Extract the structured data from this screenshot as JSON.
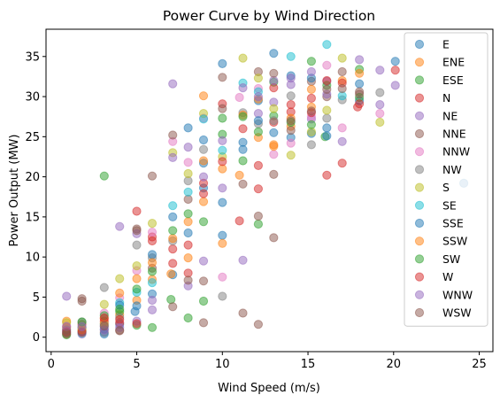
{
  "chart_data": {
    "type": "scatter",
    "title": "Power Curve by Wind Direction",
    "xlabel": "Wind Speed (m/s)",
    "ylabel": "Power Output (MW)",
    "xlim": [
      -0.3,
      25.8
    ],
    "ylim": [
      -1.8,
      38.4
    ],
    "xticks": [
      0,
      5,
      10,
      15,
      20,
      25
    ],
    "yticks": [
      0,
      5,
      10,
      15,
      20,
      25,
      30,
      35
    ],
    "grid": false,
    "legend_position": "top-right",
    "marker_alpha": 0.5,
    "series": [
      {
        "name": "E",
        "color": "#1f77b4",
        "points": [
          [
            0.9,
            0.6
          ],
          [
            1.8,
            1.2
          ],
          [
            3.1,
            1.0
          ],
          [
            4.0,
            1.6
          ],
          [
            4.9,
            3.2
          ],
          [
            5.9,
            5.4
          ],
          [
            7.1,
            7.8
          ],
          [
            8.0,
            13.0
          ],
          [
            8.9,
            18.6
          ],
          [
            8.9,
            21.7
          ],
          [
            10.0,
            12.7
          ],
          [
            10.0,
            34.1
          ],
          [
            11.2,
            23.4
          ],
          [
            12.1,
            29.5
          ],
          [
            13.0,
            35.4
          ],
          [
            14.0,
            24.9
          ],
          [
            15.2,
            25.4
          ],
          [
            16.1,
            26.1
          ],
          [
            18.0,
            31.6
          ]
        ]
      },
      {
        "name": "ENE",
        "color": "#ff7f0e",
        "points": [
          [
            0.9,
            2.0
          ],
          [
            3.1,
            2.3
          ],
          [
            4.0,
            2.8
          ],
          [
            5.0,
            4.6
          ],
          [
            5.9,
            7.2
          ],
          [
            7.0,
            7.9
          ],
          [
            8.0,
            9.9
          ],
          [
            8.9,
            30.1
          ],
          [
            8.9,
            16.9
          ],
          [
            10.0,
            11.7
          ],
          [
            11.0,
            20.2
          ],
          [
            12.1,
            29.7
          ],
          [
            13.0,
            24.0
          ],
          [
            14.0,
            26.3
          ],
          [
            15.2,
            28.7
          ]
        ]
      },
      {
        "name": "ESE",
        "color": "#2ca02c",
        "points": [
          [
            1.8,
            0.8
          ],
          [
            3.1,
            20.1
          ],
          [
            4.0,
            3.2
          ],
          [
            5.0,
            1.5
          ],
          [
            5.9,
            1.2
          ],
          [
            7.0,
            4.7
          ],
          [
            8.0,
            2.4
          ],
          [
            8.9,
            4.5
          ],
          [
            10.0,
            25.3
          ],
          [
            11.2,
            22.0
          ],
          [
            12.1,
            14.1
          ],
          [
            13.0,
            27.6
          ],
          [
            15.2,
            34.4
          ],
          [
            16.0,
            25.0
          ],
          [
            18.0,
            33.4
          ]
        ]
      },
      {
        "name": "N",
        "color": "#d62728",
        "points": [
          [
            0.9,
            0.4
          ],
          [
            1.8,
            1.6
          ],
          [
            3.1,
            2.0
          ],
          [
            4.0,
            1.8
          ],
          [
            5.0,
            15.7
          ],
          [
            5.9,
            12.5
          ],
          [
            7.1,
            11.0
          ],
          [
            8.0,
            8.0
          ],
          [
            8.9,
            17.9
          ],
          [
            10.0,
            29.1
          ],
          [
            11.0,
            14.5
          ],
          [
            12.1,
            18.5
          ],
          [
            13.0,
            26.8
          ],
          [
            14.0,
            28.1
          ],
          [
            15.2,
            29.8
          ],
          [
            16.1,
            20.2
          ],
          [
            17.0,
            21.7
          ],
          [
            17.9,
            28.7
          ]
        ]
      },
      {
        "name": "NE",
        "color": "#9467bd",
        "points": [
          [
            0.9,
            5.1
          ],
          [
            1.8,
            0.4
          ],
          [
            3.1,
            1.3
          ],
          [
            4.0,
            13.8
          ],
          [
            5.0,
            2.0
          ],
          [
            5.9,
            3.4
          ],
          [
            7.1,
            31.6
          ],
          [
            8.0,
            6.4
          ],
          [
            8.9,
            9.5
          ],
          [
            10.0,
            18.6
          ],
          [
            11.2,
            9.6
          ],
          [
            12.1,
            27.9
          ],
          [
            13.0,
            29.3
          ],
          [
            14.0,
            31.5
          ],
          [
            15.2,
            27.2
          ],
          [
            16.1,
            31.9
          ],
          [
            17.0,
            24.4
          ],
          [
            19.2,
            29.0
          ],
          [
            20.1,
            31.4
          ]
        ]
      },
      {
        "name": "NNE",
        "color": "#8c564b",
        "points": [
          [
            1.8,
            4.8
          ],
          [
            3.1,
            0.6
          ],
          [
            4.0,
            0.9
          ],
          [
            5.0,
            13.5
          ],
          [
            5.9,
            8.6
          ],
          [
            7.1,
            3.8
          ],
          [
            8.0,
            17.2
          ],
          [
            8.9,
            7.0
          ],
          [
            10.0,
            28.5
          ],
          [
            11.2,
            19.1
          ],
          [
            12.1,
            33.1
          ],
          [
            13.0,
            20.3
          ],
          [
            14.0,
            25.8
          ],
          [
            15.2,
            31.9
          ],
          [
            16.1,
            30.0
          ],
          [
            17.0,
            33.1
          ],
          [
            18.0,
            30.6
          ]
        ]
      },
      {
        "name": "NNW",
        "color": "#e377c2",
        "points": [
          [
            0.9,
            1.4
          ],
          [
            3.1,
            3.0
          ],
          [
            4.0,
            4.9
          ],
          [
            5.0,
            8.3
          ],
          [
            5.9,
            13.1
          ],
          [
            7.1,
            24.4
          ],
          [
            8.0,
            21.8
          ],
          [
            8.9,
            27.3
          ],
          [
            10.0,
            7.5
          ],
          [
            11.0,
            29.9
          ],
          [
            12.1,
            31.0
          ],
          [
            13.0,
            22.8
          ],
          [
            14.0,
            24.2
          ],
          [
            15.2,
            27.5
          ],
          [
            16.1,
            33.9
          ],
          [
            17.0,
            26.1
          ],
          [
            19.2,
            27.9
          ]
        ]
      },
      {
        "name": "NW",
        "color": "#7f7f7f",
        "points": [
          [
            0.9,
            1.0
          ],
          [
            1.8,
            1.9
          ],
          [
            3.1,
            6.2
          ],
          [
            4.0,
            2.5
          ],
          [
            5.0,
            11.5
          ],
          [
            5.9,
            9.9
          ],
          [
            7.1,
            12.0
          ],
          [
            8.0,
            19.5
          ],
          [
            8.9,
            23.4
          ],
          [
            10.0,
            5.1
          ],
          [
            11.2,
            28.0
          ],
          [
            12.1,
            26.6
          ],
          [
            13.0,
            27.0
          ],
          [
            14.0,
            30.1
          ],
          [
            15.2,
            24.0
          ],
          [
            16.1,
            27.3
          ],
          [
            17.0,
            29.6
          ],
          [
            19.2,
            30.5
          ]
        ]
      },
      {
        "name": "S",
        "color": "#bcbd22",
        "points": [
          [
            0.9,
            1.8
          ],
          [
            1.8,
            1.1
          ],
          [
            3.1,
            4.1
          ],
          [
            4.0,
            7.3
          ],
          [
            5.0,
            8.9
          ],
          [
            5.9,
            14.2
          ],
          [
            7.1,
            23.0
          ],
          [
            8.0,
            20.4
          ],
          [
            8.9,
            27.9
          ],
          [
            10.0,
            22.5
          ],
          [
            11.2,
            34.8
          ],
          [
            12.1,
            32.3
          ],
          [
            13.0,
            28.5
          ],
          [
            14.0,
            22.7
          ],
          [
            15.2,
            25.6
          ],
          [
            16.1,
            28.3
          ],
          [
            17.0,
            34.8
          ],
          [
            19.2,
            26.8
          ]
        ]
      },
      {
        "name": "SE",
        "color": "#17becf",
        "points": [
          [
            1.8,
            0.5
          ],
          [
            3.1,
            1.6
          ],
          [
            4.0,
            4.3
          ],
          [
            5.0,
            5.6
          ],
          [
            5.9,
            6.8
          ],
          [
            7.1,
            16.4
          ],
          [
            8.0,
            18.1
          ],
          [
            8.9,
            27.2
          ],
          [
            10.0,
            23.3
          ],
          [
            11.2,
            31.7
          ],
          [
            12.1,
            30.6
          ],
          [
            14.0,
            35.0
          ],
          [
            16.1,
            36.5
          ],
          [
            17.0,
            30.1
          ]
        ]
      },
      {
        "name": "SSE",
        "color": "#1f77b4",
        "points": [
          [
            0.9,
            0.9
          ],
          [
            1.8,
            0.7
          ],
          [
            3.1,
            0.4
          ],
          [
            4.0,
            4.0
          ],
          [
            5.0,
            3.9
          ],
          [
            5.9,
            10.3
          ],
          [
            7.1,
            15.0
          ],
          [
            8.0,
            26.1
          ],
          [
            8.9,
            24.6
          ],
          [
            10.0,
            16.8
          ],
          [
            11.2,
            24.3
          ],
          [
            12.1,
            27.0
          ],
          [
            13.0,
            25.5
          ],
          [
            14.0,
            32.6
          ],
          [
            15.2,
            32.3
          ],
          [
            16.1,
            25.1
          ],
          [
            18.0,
            29.5
          ],
          [
            20.1,
            34.4
          ],
          [
            24.1,
            19.2
          ]
        ]
      },
      {
        "name": "SSW",
        "color": "#ff7f0e",
        "points": [
          [
            0.9,
            1.2
          ],
          [
            1.8,
            0.9
          ],
          [
            3.1,
            1.7
          ],
          [
            4.0,
            5.5
          ],
          [
            5.0,
            7.3
          ],
          [
            5.9,
            9.3
          ],
          [
            7.1,
            12.3
          ],
          [
            8.0,
            14.4
          ],
          [
            8.9,
            22.0
          ],
          [
            10.0,
            21.0
          ],
          [
            11.2,
            27.7
          ],
          [
            12.1,
            24.9
          ],
          [
            13.0,
            23.8
          ],
          [
            14.0,
            27.3
          ],
          [
            15.2,
            30.9
          ],
          [
            17.0,
            32.0
          ],
          [
            18.0,
            32.9
          ]
        ]
      },
      {
        "name": "SW",
        "color": "#2ca02c",
        "points": [
          [
            0.9,
            0.3
          ],
          [
            1.8,
            1.9
          ],
          [
            3.1,
            2.7
          ],
          [
            4.0,
            3.5
          ],
          [
            5.0,
            6.0
          ],
          [
            5.9,
            8.2
          ],
          [
            7.1,
            13.3
          ],
          [
            8.0,
            15.4
          ],
          [
            8.9,
            14.4
          ],
          [
            10.0,
            27.3
          ],
          [
            11.2,
            27.5
          ],
          [
            12.1,
            25.6
          ],
          [
            13.0,
            31.8
          ],
          [
            14.0,
            26.8
          ],
          [
            15.2,
            26.5
          ],
          [
            16.1,
            31.4
          ],
          [
            18.0,
            29.9
          ]
        ]
      },
      {
        "name": "W",
        "color": "#d62728",
        "points": [
          [
            0.9,
            0.7
          ],
          [
            1.8,
            0.6
          ],
          [
            3.1,
            2.4
          ],
          [
            4.0,
            2.2
          ],
          [
            5.0,
            1.7
          ],
          [
            5.9,
            12.0
          ],
          [
            7.1,
            9.2
          ],
          [
            8.0,
            11.5
          ],
          [
            8.9,
            19.2
          ],
          [
            10.0,
            21.9
          ],
          [
            11.2,
            26.0
          ],
          [
            12.1,
            21.4
          ],
          [
            13.0,
            31.1
          ],
          [
            14.0,
            29.0
          ],
          [
            15.2,
            28.0
          ],
          [
            16.1,
            32.0
          ],
          [
            17.0,
            31.7
          ],
          [
            18.0,
            29.1
          ],
          [
            20.1,
            33.3
          ]
        ]
      },
      {
        "name": "WNW",
        "color": "#9467bd",
        "points": [
          [
            0.9,
            1.3
          ],
          [
            1.8,
            1.3
          ],
          [
            3.1,
            0.9
          ],
          [
            4.0,
            1.2
          ],
          [
            5.0,
            12.9
          ],
          [
            5.9,
            4.6
          ],
          [
            7.1,
            22.4
          ],
          [
            8.0,
            23.7
          ],
          [
            8.9,
            20.0
          ],
          [
            10.0,
            24.5
          ],
          [
            11.2,
            31.1
          ],
          [
            12.1,
            30.0
          ],
          [
            13.0,
            32.0
          ],
          [
            14.0,
            32.3
          ],
          [
            15.2,
            33.1
          ],
          [
            16.1,
            30.3
          ],
          [
            18.0,
            34.6
          ],
          [
            19.2,
            33.3
          ]
        ]
      },
      {
        "name": "WSW",
        "color": "#8c564b",
        "points": [
          [
            0.9,
            0.5
          ],
          [
            1.8,
            4.5
          ],
          [
            3.1,
            1.4
          ],
          [
            4.0,
            0.8
          ],
          [
            5.0,
            13.3
          ],
          [
            5.9,
            20.1
          ],
          [
            7.1,
            25.2
          ],
          [
            8.0,
            7.1
          ],
          [
            8.9,
            1.8
          ],
          [
            10.0,
            32.4
          ],
          [
            11.2,
            3.0
          ],
          [
            12.1,
            1.6
          ],
          [
            12.1,
            15.1
          ],
          [
            13.0,
            12.4
          ],
          [
            13.0,
            32.9
          ],
          [
            14.0,
            27.0
          ],
          [
            15.2,
            28.2
          ],
          [
            16.1,
            30.9
          ],
          [
            17.0,
            31.0
          ],
          [
            18.0,
            30.3
          ]
        ]
      }
    ]
  }
}
